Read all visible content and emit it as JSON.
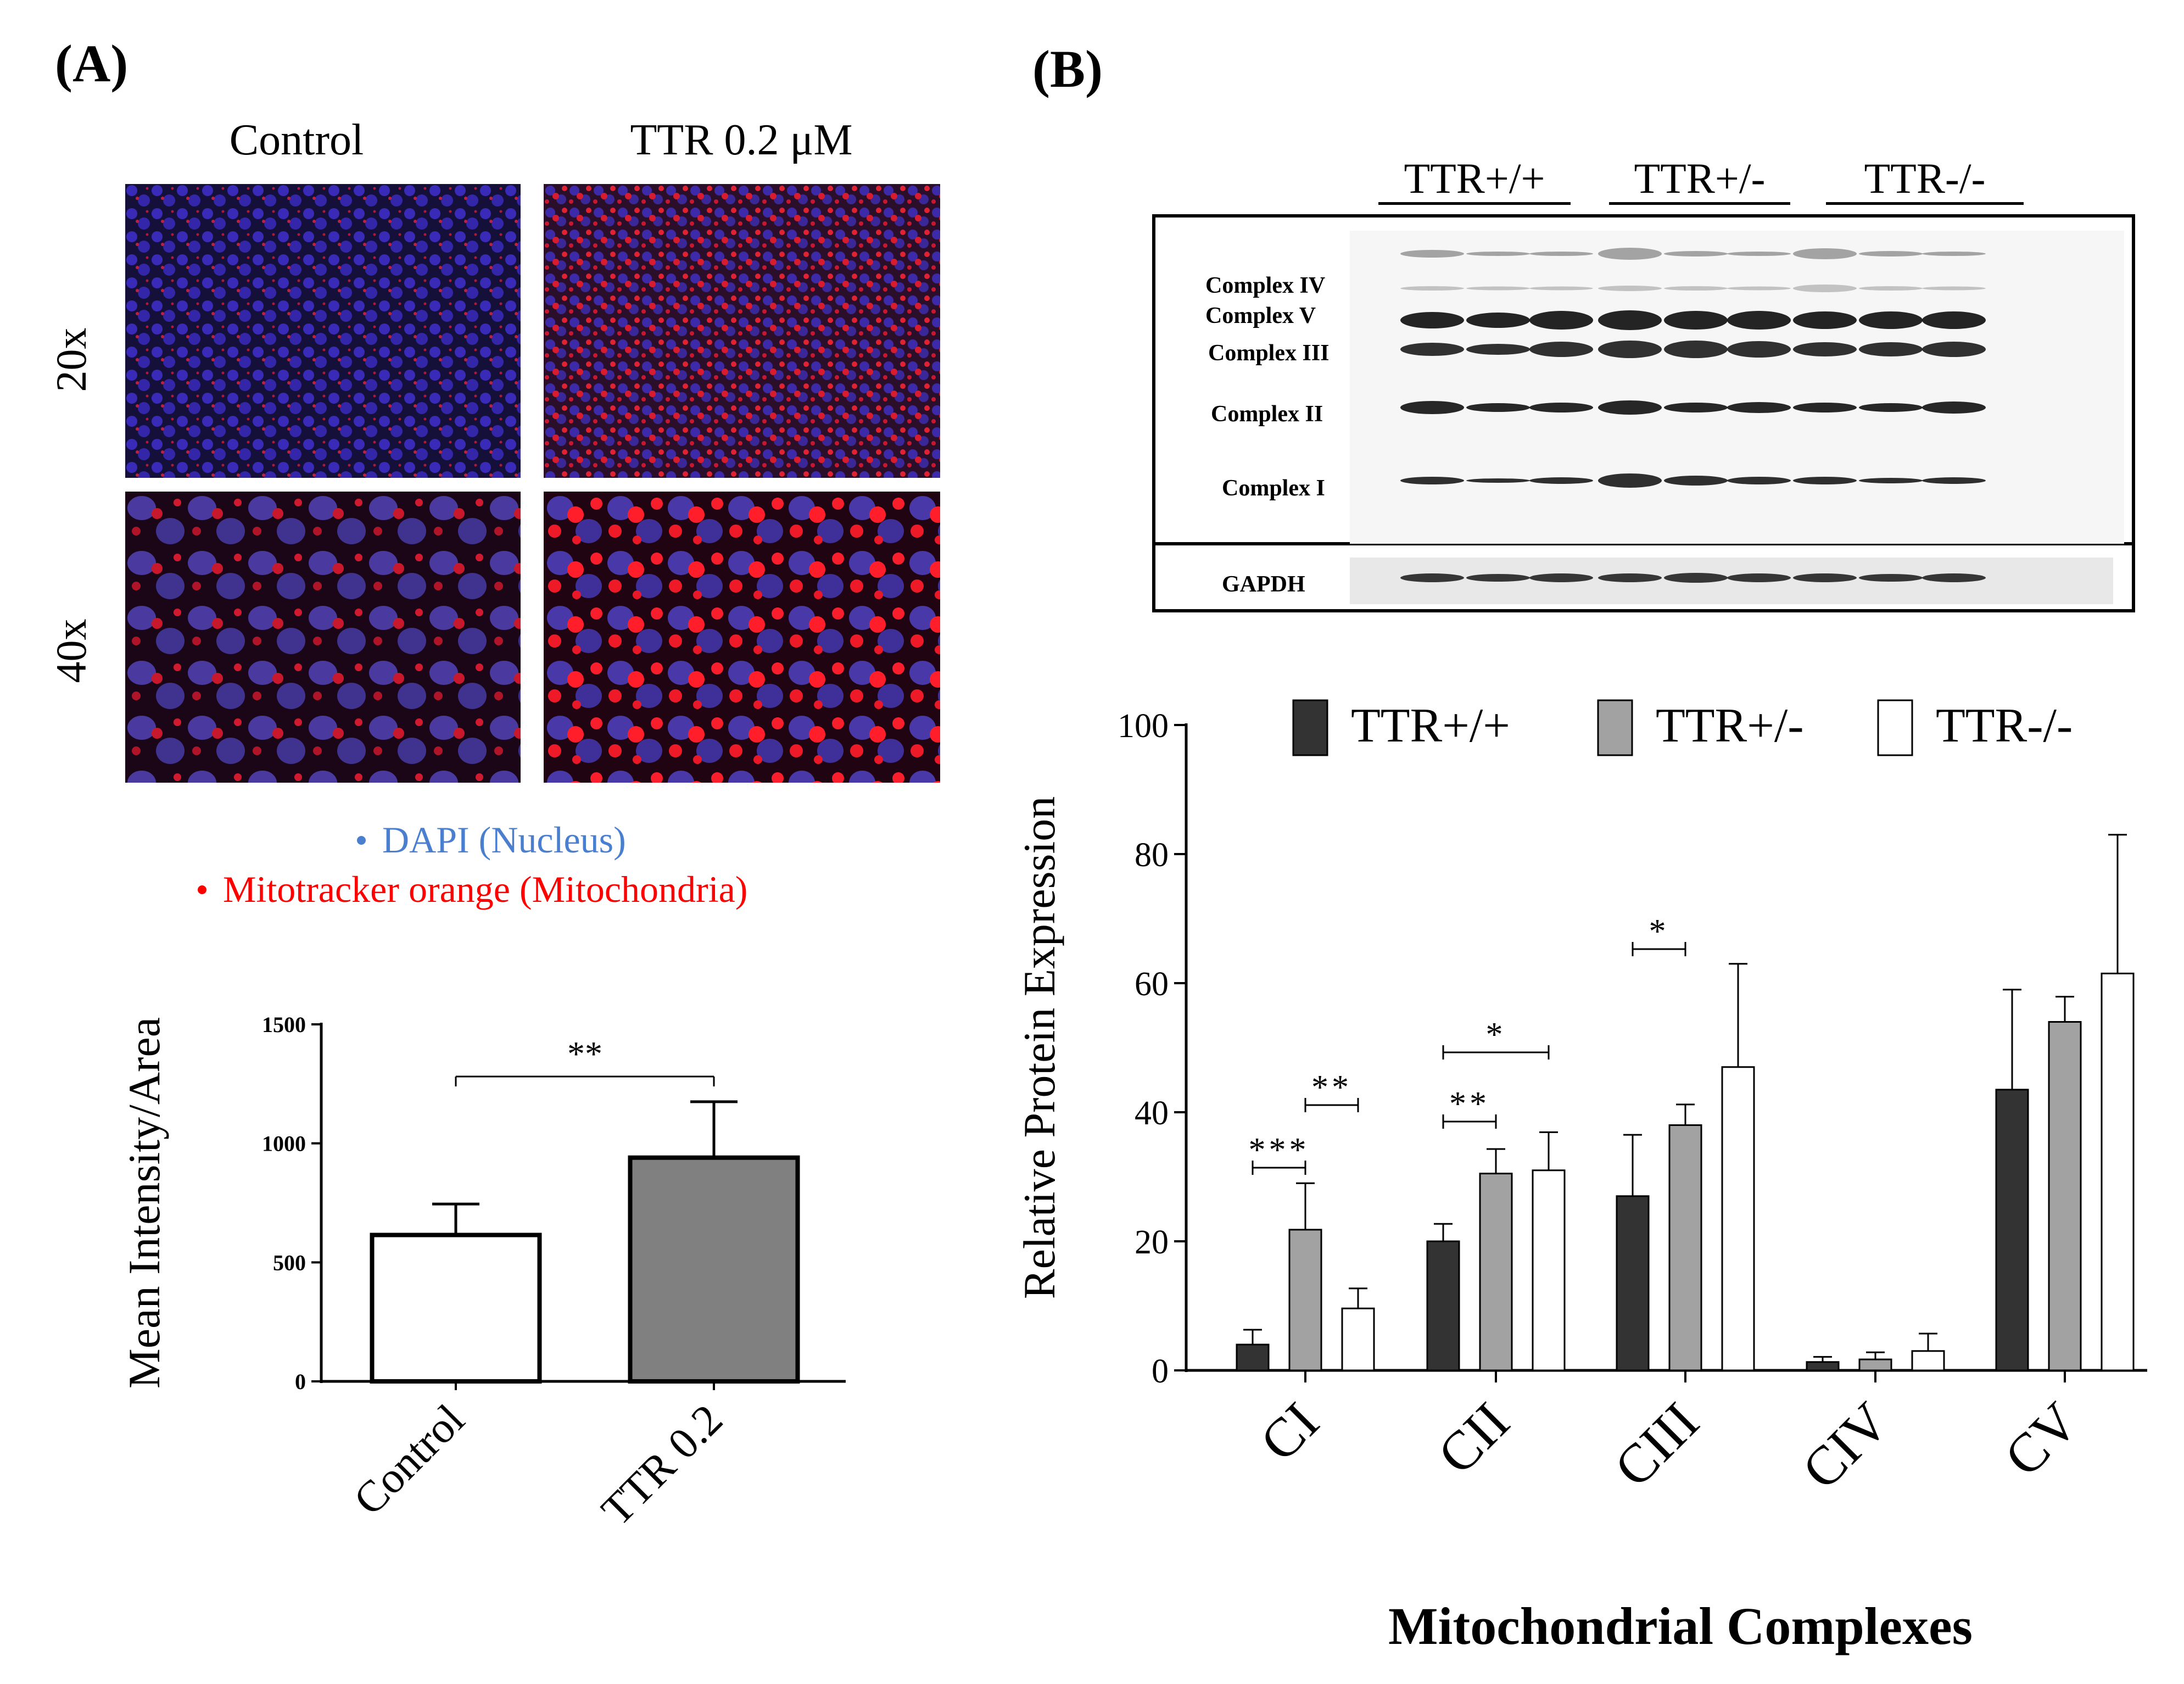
{
  "panel_a": {
    "label": "(A)",
    "columns": [
      "Control",
      "TTR 0.2 μM"
    ],
    "rows": [
      "20x",
      "40x"
    ],
    "legend": [
      {
        "text": "DAPI (Nucleus)",
        "color": "#4a7fd0"
      },
      {
        "text": "Mitotracker orange (Mitochondria)",
        "color": "#ff0000"
      }
    ]
  },
  "panel_b": {
    "label": "(B)",
    "blot": {
      "groups": [
        "TTR+/+",
        "TTR+/-",
        "TTR-/-"
      ],
      "bands": [
        "Complex IV",
        "Complex V",
        "Complex III",
        "Complex II",
        "Complex I"
      ],
      "loading_control": "GAPDH"
    },
    "xlabel_bold": "Mitochondrial Complexes"
  },
  "chart_data": [
    {
      "type": "bar",
      "categories": [
        "Control",
        "TTR 0.2"
      ],
      "values": [
        615,
        940
      ],
      "errors": [
        130,
        235
      ],
      "colors": [
        "#ffffff",
        "#808080"
      ],
      "ylabel": "Mean Intensity/Area",
      "yticks": [
        "0",
        "500",
        "1000",
        "1500"
      ],
      "ylim": [
        0,
        1500
      ],
      "significance": [
        {
          "label": "**",
          "from": 0,
          "to": 1
        }
      ]
    },
    {
      "type": "bar",
      "categories": [
        "CI",
        "CII",
        "CIII",
        "CIV",
        "CV"
      ],
      "series": [
        {
          "name": "TTR+/+",
          "color": "#333333",
          "values": [
            4,
            20,
            27,
            1.3,
            43.5
          ],
          "errors": [
            2.3,
            2.7,
            9.5,
            0.8,
            15.5
          ]
        },
        {
          "name": "TTR+/-",
          "color": "#a2a2a2",
          "values": [
            21.8,
            30.5,
            38,
            1.7,
            54
          ],
          "errors": [
            7.2,
            3.8,
            3.2,
            1.1,
            3.9
          ]
        },
        {
          "name": "TTR-/-",
          "color": "#ffffff",
          "values": [
            9.6,
            31,
            47,
            3,
            61.5
          ],
          "errors": [
            3.1,
            5.9,
            16,
            2.7,
            21.5
          ]
        }
      ],
      "ylabel": "Relative Protein Expression",
      "xlabel": "Mitochondrial Complexes",
      "yticks": [
        "0",
        "20",
        "40",
        "60",
        "80",
        "100"
      ],
      "ylim": [
        0,
        100
      ],
      "significance": [
        {
          "label": "***",
          "cat": 0,
          "from": 0,
          "to": 1
        },
        {
          "label": "**",
          "cat": 0,
          "from": 1,
          "to": 2
        },
        {
          "label": "**",
          "cat": 1,
          "from": 0,
          "to": 1
        },
        {
          "label": "*",
          "cat": 1,
          "from": 0,
          "to": 2
        },
        {
          "label": "*",
          "cat": 2,
          "from": 0,
          "to": 1
        }
      ]
    }
  ]
}
